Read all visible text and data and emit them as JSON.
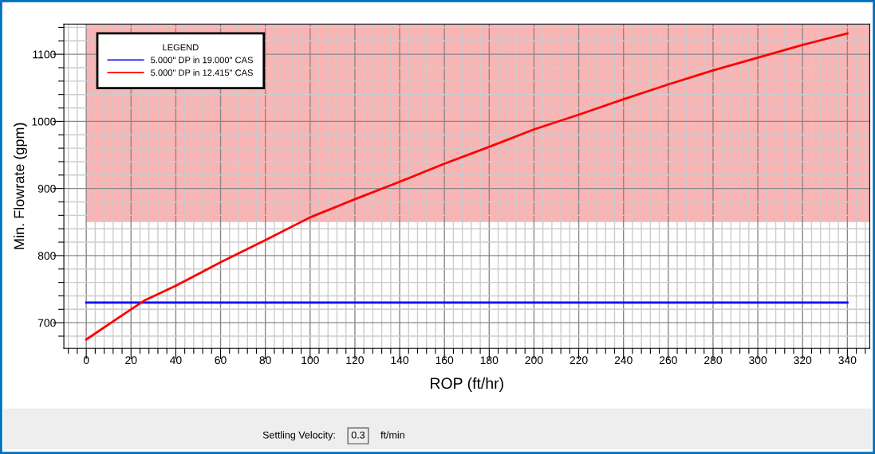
{
  "chart_data": {
    "type": "line",
    "xlabel": "ROP (ft/hr)",
    "ylabel": "Min. Flowrate (gpm)",
    "legend_title": "LEGEND",
    "x": [
      0,
      20,
      26,
      40,
      60,
      80,
      100,
      120,
      140,
      160,
      180,
      200,
      220,
      240,
      260,
      280,
      300,
      320,
      340
    ],
    "series": [
      {
        "name": "5.000\" DP in 19.000\" CAS",
        "color": "#0000ff",
        "values": [
          730,
          730,
          730,
          730,
          730,
          730,
          730,
          730,
          730,
          730,
          730,
          730,
          730,
          730,
          730,
          730,
          730,
          730,
          730
        ]
      },
      {
        "name": "5.000\" DP in 12.415\" CAS",
        "color": "#ff0000",
        "values": [
          675,
          720,
          733,
          755,
          790,
          823,
          857,
          884,
          910,
          937,
          962,
          988,
          1010,
          1033,
          1055,
          1076,
          1095,
          1114,
          1131
        ]
      }
    ],
    "bands": [
      {
        "axis": "y",
        "from": 850,
        "to": 1145,
        "color": "#fab4b4"
      }
    ],
    "xlim": [
      -10,
      350
    ],
    "xticks": [
      {
        "value": -8,
        "label": null
      },
      {
        "value": -4,
        "label": null
      },
      0,
      {
        "value": 4,
        "label": null
      },
      {
        "value": 8,
        "label": null
      },
      {
        "value": 12,
        "label": null
      },
      {
        "value": 16,
        "label": null
      },
      20,
      {
        "value": 24,
        "label": null
      },
      {
        "value": 28,
        "label": null
      },
      {
        "value": 32,
        "label": null
      },
      {
        "value": 36,
        "label": null
      },
      40,
      {
        "value": 44,
        "label": null
      },
      {
        "value": 48,
        "label": null
      },
      {
        "value": 52,
        "label": null
      },
      {
        "value": 56,
        "label": null
      },
      60,
      {
        "value": 64,
        "label": null
      },
      {
        "value": 68,
        "label": null
      },
      {
        "value": 72,
        "label": null
      },
      {
        "value": 76,
        "label": null
      },
      80,
      {
        "value": 84,
        "label": null
      },
      {
        "value": 88,
        "label": null
      },
      {
        "value": 92,
        "label": null
      },
      {
        "value": 96,
        "label": null
      },
      100,
      {
        "value": 104,
        "label": null
      },
      {
        "value": 108,
        "label": null
      },
      {
        "value": 112,
        "label": null
      },
      {
        "value": 116,
        "label": null
      },
      120,
      {
        "value": 124,
        "label": null
      },
      {
        "value": 128,
        "label": null
      },
      {
        "value": 132,
        "label": null
      },
      {
        "value": 136,
        "label": null
      },
      140,
      {
        "value": 144,
        "label": null
      },
      {
        "value": 148,
        "label": null
      },
      {
        "value": 152,
        "label": null
      },
      {
        "value": 156,
        "label": null
      },
      160,
      {
        "value": 164,
        "label": null
      },
      {
        "value": 168,
        "label": null
      },
      {
        "value": 172,
        "label": null
      },
      {
        "value": 176,
        "label": null
      },
      180,
      {
        "value": 184,
        "label": null
      },
      {
        "value": 188,
        "label": null
      },
      {
        "value": 192,
        "label": null
      },
      {
        "value": 196,
        "label": null
      },
      200,
      {
        "value": 204,
        "label": null
      },
      {
        "value": 208,
        "label": null
      },
      {
        "value": 212,
        "label": null
      },
      {
        "value": 216,
        "label": null
      },
      220,
      {
        "value": 224,
        "label": null
      },
      {
        "value": 228,
        "label": null
      },
      {
        "value": 232,
        "label": null
      },
      {
        "value": 236,
        "label": null
      },
      240,
      {
        "value": 244,
        "label": null
      },
      {
        "value": 248,
        "label": null
      },
      {
        "value": 252,
        "label": null
      },
      {
        "value": 256,
        "label": null
      },
      260,
      {
        "value": 264,
        "label": null
      },
      {
        "value": 268,
        "label": null
      },
      {
        "value": 272,
        "label": null
      },
      {
        "value": 276,
        "label": null
      },
      280,
      {
        "value": 284,
        "label": null
      },
      {
        "value": 288,
        "label": null
      },
      {
        "value": 292,
        "label": null
      },
      {
        "value": 296,
        "label": null
      },
      300,
      {
        "value": 304,
        "label": null
      },
      {
        "value": 308,
        "label": null
      },
      {
        "value": 312,
        "label": null
      },
      {
        "value": 316,
        "label": null
      },
      320,
      {
        "value": 324,
        "label": null
      },
      {
        "value": 328,
        "label": null
      },
      {
        "value": 332,
        "label": null
      },
      {
        "value": 336,
        "label": null
      },
      340,
      {
        "value": 344,
        "label": null
      },
      {
        "value": 348,
        "label": null
      }
    ],
    "ylim": [
      662,
      1145
    ],
    "yticks": [
      {
        "value": 680,
        "label": null
      },
      700,
      {
        "value": 720,
        "label": null
      },
      {
        "value": 740,
        "label": null
      },
      {
        "value": 760,
        "label": null
      },
      {
        "value": 780,
        "label": null
      },
      800,
      {
        "value": 820,
        "label": null
      },
      {
        "value": 840,
        "label": null
      },
      {
        "value": 860,
        "label": null
      },
      {
        "value": 880,
        "label": null
      },
      900,
      {
        "value": 920,
        "label": null
      },
      {
        "value": 940,
        "label": null
      },
      {
        "value": 960,
        "label": null
      },
      {
        "value": 980,
        "label": null
      },
      1000,
      {
        "value": 1020,
        "label": null
      },
      {
        "value": 1040,
        "label": null
      },
      {
        "value": 1060,
        "label": null
      },
      {
        "value": 1080,
        "label": null
      },
      1100,
      {
        "value": 1120,
        "label": null
      },
      {
        "value": 1140,
        "label": null
      }
    ],
    "grid": true,
    "legend": "top left",
    "line_style": "solid",
    "marker": "none",
    "annotations": [
      "Settling Velocity:",
      "0.3",
      "ft/min"
    ]
  }
}
